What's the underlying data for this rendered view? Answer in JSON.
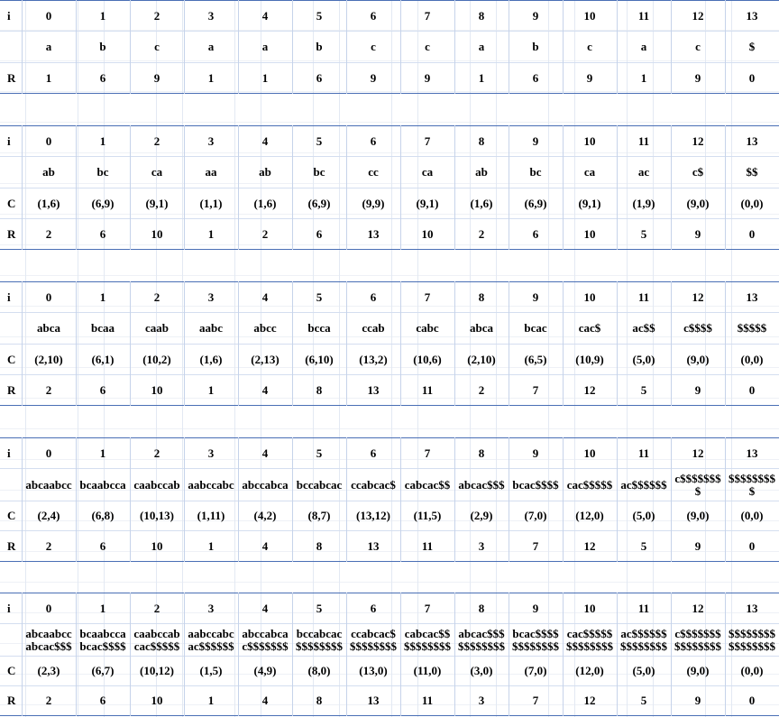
{
  "sheet": {
    "tables": [
      {
        "rows": [
          {
            "label": "i",
            "cells": [
              "0",
              "1",
              "2",
              "3",
              "4",
              "5",
              "6",
              "7",
              "8",
              "9",
              "10",
              "11",
              "12",
              "13"
            ]
          },
          {
            "label": "",
            "cells": [
              "a",
              "b",
              "c",
              "a",
              "a",
              "b",
              "c",
              "c",
              "a",
              "b",
              "c",
              "a",
              "c",
              "$"
            ]
          },
          {
            "label": "R",
            "cells": [
              "1",
              "6",
              "9",
              "1",
              "1",
              "6",
              "9",
              "9",
              "1",
              "6",
              "9",
              "1",
              "9",
              "0"
            ]
          }
        ]
      },
      {
        "rows": [
          {
            "label": "i",
            "cells": [
              "0",
              "1",
              "2",
              "3",
              "4",
              "5",
              "6",
              "7",
              "8",
              "9",
              "10",
              "11",
              "12",
              "13"
            ]
          },
          {
            "label": "",
            "cells": [
              "ab",
              "bc",
              "ca",
              "aa",
              "ab",
              "bc",
              "cc",
              "ca",
              "ab",
              "bc",
              "ca",
              "ac",
              "c$",
              "$$"
            ]
          },
          {
            "label": "C",
            "cells": [
              "(1,6)",
              "(6,9)",
              "(9,1)",
              "(1,1)",
              "(1,6)",
              "(6,9)",
              "(9,9)",
              "(9,1)",
              "(1,6)",
              "(6,9)",
              "(9,1)",
              "(1,9)",
              "(9,0)",
              "(0,0)"
            ]
          },
          {
            "label": "R",
            "cells": [
              "2",
              "6",
              "10",
              "1",
              "2",
              "6",
              "13",
              "10",
              "2",
              "6",
              "10",
              "5",
              "9",
              "0"
            ]
          }
        ]
      },
      {
        "rows": [
          {
            "label": "i",
            "cells": [
              "0",
              "1",
              "2",
              "3",
              "4",
              "5",
              "6",
              "7",
              "8",
              "9",
              "10",
              "11",
              "12",
              "13"
            ]
          },
          {
            "label": "",
            "cells": [
              "abca",
              "bcaa",
              "caab",
              "aabc",
              "abcc",
              "bcca",
              "ccab",
              "cabc",
              "abca",
              "bcac",
              "cac$",
              "ac$$",
              "c$$$$",
              "$$$$$"
            ]
          },
          {
            "label": "C",
            "cells": [
              "(2,10)",
              "(6,1)",
              "(10,2)",
              "(1,6)",
              "(2,13)",
              "(6,10)",
              "(13,2)",
              "(10,6)",
              "(2,10)",
              "(6,5)",
              "(10,9)",
              "(5,0)",
              "(9,0)",
              "(0,0)"
            ]
          },
          {
            "label": "R",
            "cells": [
              "2",
              "6",
              "10",
              "1",
              "4",
              "8",
              "13",
              "11",
              "2",
              "7",
              "12",
              "5",
              "9",
              "0"
            ]
          }
        ]
      },
      {
        "rows": [
          {
            "label": "i",
            "cells": [
              "0",
              "1",
              "2",
              "3",
              "4",
              "5",
              "6",
              "7",
              "8",
              "9",
              "10",
              "11",
              "12",
              "13"
            ]
          },
          {
            "label": "",
            "cells": [
              "abcaabcc",
              "bcaabcca",
              "caabccab",
              "aabccabc",
              "abccabca",
              "bccabcac",
              "ccabcac$",
              "cabcac$$",
              "abcac$$$",
              "bcac$$$$",
              "cac$$$$$",
              "ac$$$$$$",
              "c$$$$$$$\n$",
              "$$$$$$$$\n$"
            ]
          },
          {
            "label": "C",
            "cells": [
              "(2,4)",
              "(6,8)",
              "(10,13)",
              "(1,11)",
              "(4,2)",
              "(8,7)",
              "(13,12)",
              "(11,5)",
              "(2,9)",
              "(7,0)",
              "(12,0)",
              "(5,0)",
              "(9,0)",
              "(0,0)"
            ]
          },
          {
            "label": "R",
            "cells": [
              "2",
              "6",
              "10",
              "1",
              "4",
              "8",
              "13",
              "11",
              "3",
              "7",
              "12",
              "5",
              "9",
              "0"
            ]
          }
        ]
      },
      {
        "rows": [
          {
            "label": "i",
            "cells": [
              "0",
              "1",
              "2",
              "3",
              "4",
              "5",
              "6",
              "7",
              "8",
              "9",
              "10",
              "11",
              "12",
              "13"
            ]
          },
          {
            "label": "",
            "cells": [
              "abcaabcc\nabcac$$$",
              "bcaabcca\nbcac$$$$",
              "caabccab\ncac$$$$$",
              "aabccabc\nac$$$$$$",
              "abccabca\nc$$$$$$$",
              "bccabcac\n$$$$$$$$",
              "ccabcac$\n$$$$$$$$",
              "cabcac$$\n$$$$$$$$",
              "abcac$$$\n$$$$$$$$",
              "bcac$$$$\n$$$$$$$$",
              "cac$$$$$\n$$$$$$$$",
              "ac$$$$$$\n$$$$$$$$",
              "c$$$$$$$\n$$$$$$$$",
              "$$$$$$$$\n$$$$$$$$"
            ]
          },
          {
            "label": "C",
            "cells": [
              "(2,3)",
              "(6,7)",
              "(10,12)",
              "(1,5)",
              "(4,9)",
              "(8,0)",
              "(13,0)",
              "(11,0)",
              "(3,0)",
              "(7,0)",
              "(12,0)",
              "(5,0)",
              "(9,0)",
              "(0,0)"
            ]
          },
          {
            "label": "R",
            "cells": [
              "2",
              "6",
              "10",
              "1",
              "4",
              "8",
              "13",
              "11",
              "3",
              "7",
              "12",
              "5",
              "9",
              "0"
            ]
          }
        ]
      }
    ]
  }
}
